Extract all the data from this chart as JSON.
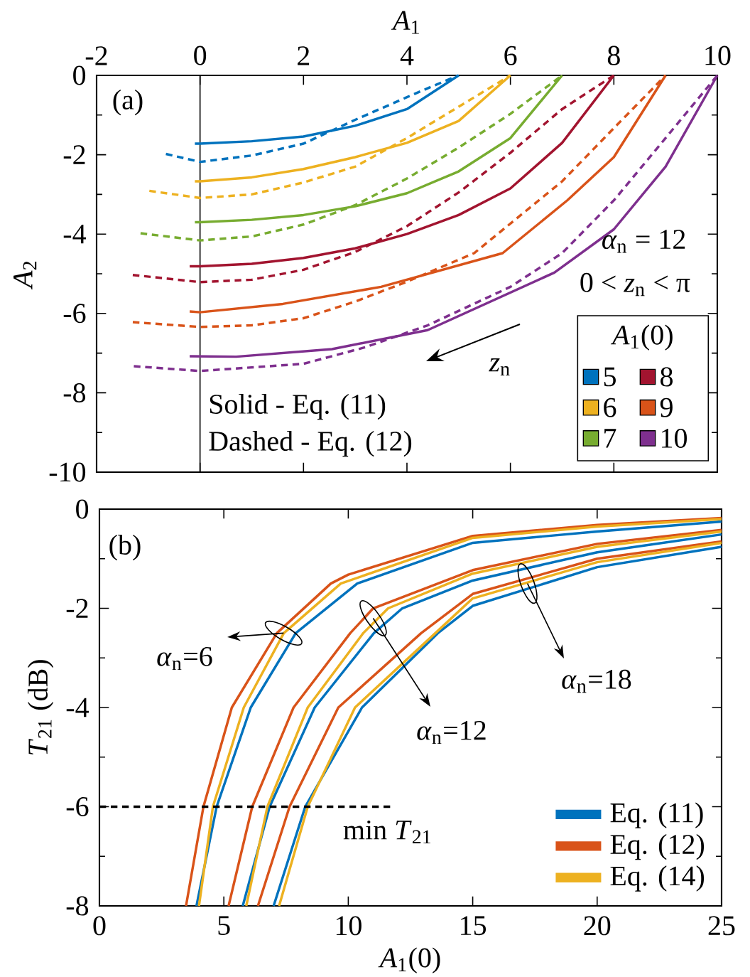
{
  "chart_data": [
    {
      "type": "line",
      "xlabel": "*A*$_{1}$",
      "ylabel": "*A*$_{2}$",
      "xlim": [
        -2,
        10
      ],
      "ylim": [
        -10,
        0
      ],
      "xticks": [
        -2,
        0,
        2,
        4,
        6,
        8,
        10
      ],
      "yticks": [
        0,
        -2,
        -4,
        -6,
        -8,
        -10
      ],
      "legend": "bottom right",
      "legend_title": "*A*$_{1}$(0)",
      "ref_lines": [
        {
          "axis": "x",
          "value": 0,
          "color": "#000000"
        }
      ],
      "annotations": [
        "(a)",
        "*α*$_{n}$ = 12",
        "0 < *z*$_{n}$ < π",
        "*z*$_{n}$",
        "Solid - Eq. (11)",
        "Dashed - Eq. (12)"
      ],
      "series": [
        {
          "name": "5",
          "color": "#0072bd",
          "line_style": "solid",
          "x": [
            -0.1,
            0,
            1,
            2,
            3,
            4,
            5
          ],
          "values": [
            -1.72,
            -1.72,
            -1.66,
            -1.54,
            -1.27,
            -0.85,
            0
          ]
        },
        {
          "color": "#0072bd",
          "line_style": "dashed",
          "x": [
            -0.66,
            0,
            1,
            2,
            3,
            4,
            4.5,
            5
          ],
          "values": [
            -1.98,
            -2.18,
            -2.02,
            -1.72,
            -1.12,
            -0.55,
            -0.27,
            0
          ]
        },
        {
          "name": "6",
          "color": "#edb120",
          "line_style": "solid",
          "x": [
            -0.1,
            0,
            1,
            2,
            3,
            4,
            5,
            6
          ],
          "values": [
            -2.67,
            -2.67,
            -2.57,
            -2.36,
            -2.06,
            -1.7,
            -1.15,
            0
          ]
        },
        {
          "color": "#edb120",
          "line_style": "dashed",
          "x": [
            -0.98,
            0,
            1,
            2,
            3,
            4,
            5,
            6
          ],
          "values": [
            -2.91,
            -3.09,
            -3.0,
            -2.7,
            -2.3,
            -1.58,
            -0.79,
            0
          ]
        },
        {
          "name": "7",
          "color": "#77ac30",
          "line_style": "solid",
          "x": [
            -0.1,
            0,
            1,
            2,
            3,
            4,
            5,
            6,
            7
          ],
          "values": [
            -3.7,
            -3.7,
            -3.64,
            -3.52,
            -3.3,
            -2.97,
            -2.42,
            -1.58,
            0
          ]
        },
        {
          "color": "#77ac30",
          "line_style": "dashed",
          "x": [
            -1.15,
            0,
            1,
            2,
            3,
            4,
            5,
            6,
            7
          ],
          "values": [
            -3.98,
            -4.16,
            -4.06,
            -3.76,
            -3.27,
            -2.6,
            -1.82,
            -0.97,
            0
          ]
        },
        {
          "name": "8",
          "color": "#a2142f",
          "line_style": "solid",
          "x": [
            -0.2,
            0,
            1,
            2,
            3,
            4,
            5,
            6,
            7,
            8
          ],
          "values": [
            -4.81,
            -4.81,
            -4.75,
            -4.6,
            -4.36,
            -4.0,
            -3.52,
            -2.85,
            -1.7,
            0
          ]
        },
        {
          "color": "#a2142f",
          "line_style": "dashed",
          "x": [
            -1.3,
            0,
            1,
            2,
            3,
            4,
            5,
            6,
            7,
            8
          ],
          "values": [
            -5.03,
            -5.21,
            -5.15,
            -4.9,
            -4.45,
            -3.8,
            -2.95,
            -1.95,
            -0.85,
            0
          ]
        },
        {
          "name": "9",
          "color": "#d95319",
          "line_style": "solid",
          "x": [
            -0.2,
            0,
            1.6,
            3.5,
            5.85,
            7.1,
            8,
            9
          ],
          "values": [
            -5.95,
            -5.97,
            -5.76,
            -5.33,
            -4.48,
            -3.15,
            -2.06,
            0
          ]
        },
        {
          "color": "#d95319",
          "line_style": "dashed",
          "x": [
            -1.3,
            0,
            1,
            2,
            3,
            4,
            5.3,
            7,
            8,
            9
          ],
          "values": [
            -6.22,
            -6.34,
            -6.3,
            -6.12,
            -5.7,
            -5.2,
            -4.48,
            -2.67,
            -1.33,
            0
          ]
        },
        {
          "name": "10",
          "color": "#7e2f8e",
          "line_style": "solid",
          "x": [
            -0.2,
            0.7,
            2.55,
            4.4,
            6.85,
            8,
            9,
            10
          ],
          "values": [
            -7.08,
            -7.09,
            -6.9,
            -6.42,
            -4.97,
            -3.88,
            -2.3,
            0
          ]
        },
        {
          "color": "#7e2f8e",
          "line_style": "dashed",
          "x": [
            -1.28,
            0,
            2,
            3.2,
            4.4,
            6,
            7,
            8,
            9,
            10
          ],
          "values": [
            -7.33,
            -7.45,
            -7.27,
            -6.85,
            -6.3,
            -5.33,
            -4.48,
            -3.15,
            -1.58,
            0
          ]
        }
      ]
    },
    {
      "type": "line",
      "xlabel": "*A*$_{1}$(0)",
      "ylabel": "*T*$_{21}$ (dB)",
      "xlim": [
        0,
        25
      ],
      "ylim": [
        -8,
        0
      ],
      "xticks": [
        0,
        5,
        10,
        15,
        20,
        25
      ],
      "yticks": [
        0,
        -2,
        -4,
        -6,
        -8
      ],
      "legend": "bottom right",
      "annotations": [
        "(b)",
        {
          "text": "*α*$_{n}$=6",
          "x": 7.4,
          "y": -2.5
        },
        {
          "text": "*α*$_{n}$=12",
          "x": 11,
          "y": -2.2
        },
        {
          "text": "*α*$_{n}$=18",
          "x": 17.2,
          "y": -1.5
        },
        "min *T*$_{21}$"
      ],
      "series": [
        {
          "name": "Eq. (11)",
          "color": "#0072bd",
          "x": [
            3.9,
            4.71,
            6.08,
            7.89,
            10.36,
            15,
            20,
            25
          ],
          "values": [
            -8,
            -6,
            -4,
            -2.5,
            -1.5,
            -0.68,
            -0.45,
            -0.25
          ]
        },
        {
          "name": "Eq. (12)",
          "color": "#d95319",
          "x": [
            3.48,
            4.18,
            5.32,
            7.13,
            9.3,
            10,
            15,
            20,
            25
          ],
          "values": [
            -8,
            -6,
            -4,
            -2.5,
            -1.5,
            -1.32,
            -0.54,
            -0.32,
            -0.18
          ]
        },
        {
          "name": "Eq. (14)",
          "color": "#edb120",
          "x": [
            4.0,
            4.56,
            5.8,
            7.41,
            9.7,
            15,
            20,
            25
          ],
          "values": [
            -8,
            -6,
            -4,
            -2.5,
            -1.5,
            -0.58,
            -0.35,
            -0.2
          ]
        },
        {
          "color": "#0072bd",
          "x": [
            5.76,
            6.84,
            8.65,
            11.03,
            12.17,
            15,
            20,
            25
          ],
          "values": [
            -8,
            -6,
            -4,
            -2.5,
            -2.0,
            -1.44,
            -0.87,
            -0.51
          ]
        },
        {
          "color": "#d95319",
          "x": [
            5.19,
            6.14,
            7.8,
            10.08,
            11.0,
            15,
            20,
            25
          ],
          "values": [
            -8,
            -6,
            -4,
            -2.5,
            -2.0,
            -1.23,
            -0.7,
            -0.42
          ]
        },
        {
          "color": "#edb120",
          "x": [
            5.9,
            6.75,
            8.37,
            10.6,
            11.6,
            15,
            20,
            25
          ],
          "values": [
            -8,
            -6,
            -4,
            -2.5,
            -2.0,
            -1.3,
            -0.76,
            -0.45
          ]
        },
        {
          "color": "#0072bd",
          "x": [
            7.0,
            8.27,
            10.55,
            13.6,
            15,
            20,
            25
          ],
          "values": [
            -8,
            -6,
            -4,
            -2.5,
            -1.95,
            -1.17,
            -0.76
          ]
        },
        {
          "color": "#d95319",
          "x": [
            6.37,
            7.64,
            9.6,
            12.93,
            15,
            20,
            25
          ],
          "values": [
            -8,
            -6,
            -4,
            -2.5,
            -1.71,
            -1.0,
            -0.65
          ]
        },
        {
          "color": "#edb120",
          "x": [
            7.22,
            8.37,
            10.27,
            13.5,
            15,
            20,
            25
          ],
          "values": [
            -8,
            -6,
            -4,
            -2.5,
            -1.8,
            -1.07,
            -0.68
          ]
        },
        {
          "color": "#000000",
          "line_style": "dashed",
          "x": [
            0,
            11.8
          ],
          "values": [
            -6,
            -6
          ]
        }
      ]
    }
  ]
}
